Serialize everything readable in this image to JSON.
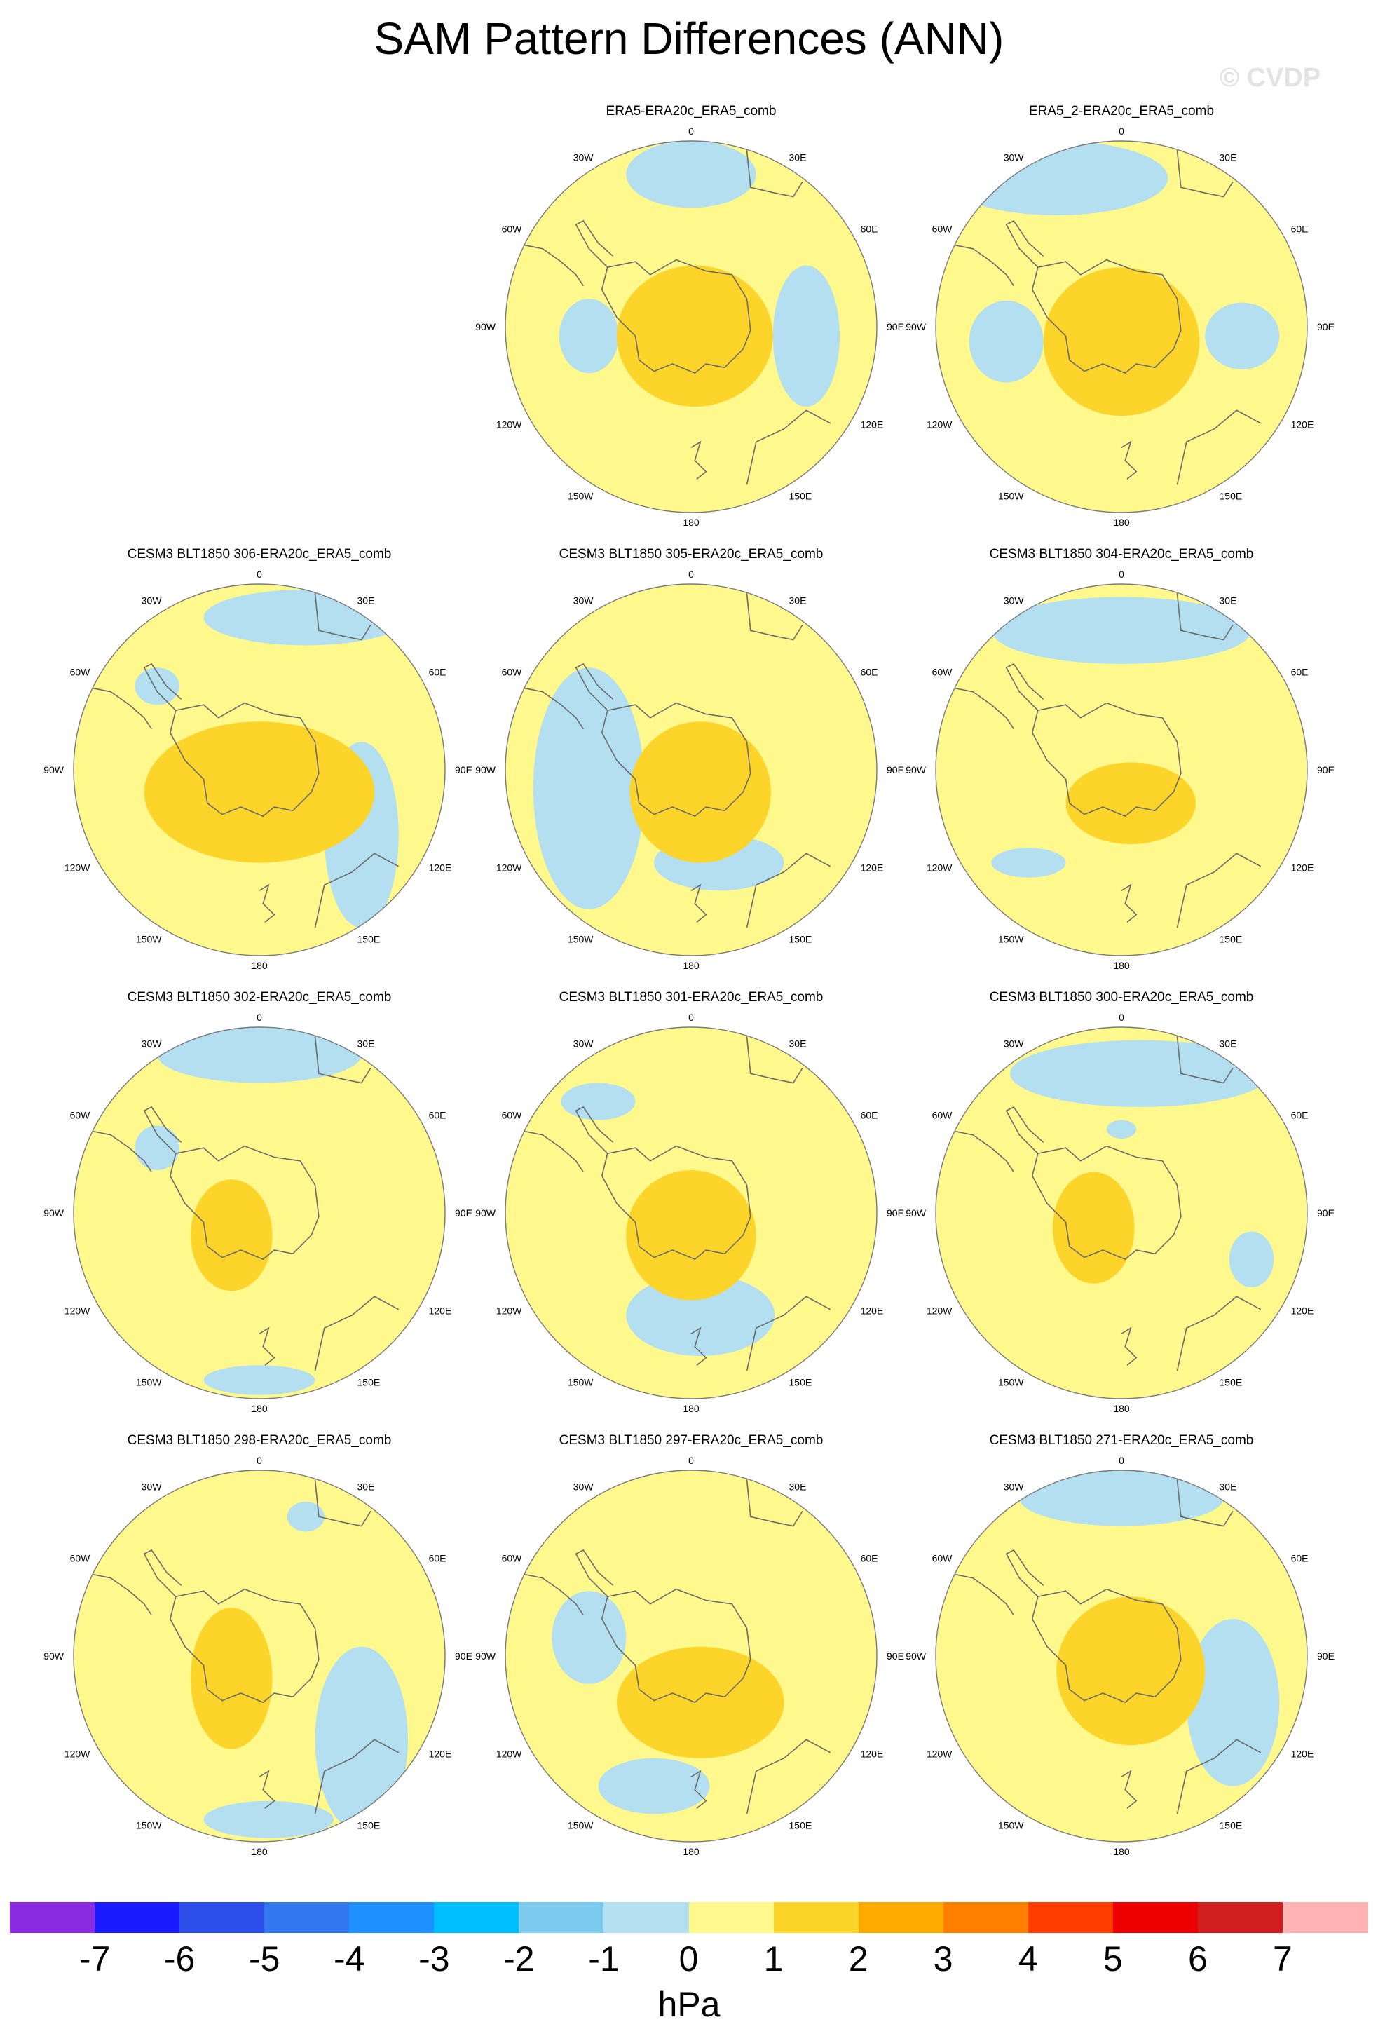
{
  "title": "SAM Pattern Differences (ANN)",
  "watermark": "© CVDP",
  "units": "hPa",
  "colors": {
    "neg1": "#b3dff0",
    "pos0": "#fff88c",
    "pos1": "#fdd52a",
    "coast": "#6a6a6a",
    "border": "#7a7a7a"
  },
  "lon_labels": [
    "0",
    "30E",
    "60E",
    "90E",
    "120E",
    "150E",
    "180",
    "150W",
    "120W",
    "90W",
    "60W",
    "30W"
  ],
  "panels": [
    {
      "title": "ERA5-ERA20c_ERA5_comb"
    },
    {
      "title": "ERA5_2-ERA20c_ERA5_comb"
    },
    {
      "title": "CESM3 BLT1850 306-ERA20c_ERA5_comb"
    },
    {
      "title": "CESM3 BLT1850 305-ERA20c_ERA5_comb"
    },
    {
      "title": "CESM3 BLT1850 304-ERA20c_ERA5_comb"
    },
    {
      "title": "CESM3 BLT1850 302-ERA20c_ERA5_comb"
    },
    {
      "title": "CESM3 BLT1850 301-ERA20c_ERA5_comb"
    },
    {
      "title": "CESM3 BLT1850 300-ERA20c_ERA5_comb"
    },
    {
      "title": "CESM3 BLT1850 298-ERA20c_ERA5_comb"
    },
    {
      "title": "CESM3 BLT1850 297-ERA20c_ERA5_comb"
    },
    {
      "title": "CESM3 BLT1850 271-ERA20c_ERA5_comb"
    }
  ],
  "colorbar": {
    "colors": [
      "#8a2be2",
      "#1a1aff",
      "#2d4ee8",
      "#3377ee",
      "#1e90ff",
      "#00bfff",
      "#7ecbf0",
      "#b3dff0",
      "#fff88c",
      "#fdd52a",
      "#ffaa00",
      "#ff7f00",
      "#ff3d00",
      "#ee0000",
      "#d11e1e",
      "#ffb3b3"
    ],
    "labels": [
      "-7",
      "-6",
      "-5",
      "-4",
      "-3",
      "-2",
      "-1",
      "0",
      "1",
      "2",
      "3",
      "4",
      "5",
      "6",
      "7"
    ]
  }
}
